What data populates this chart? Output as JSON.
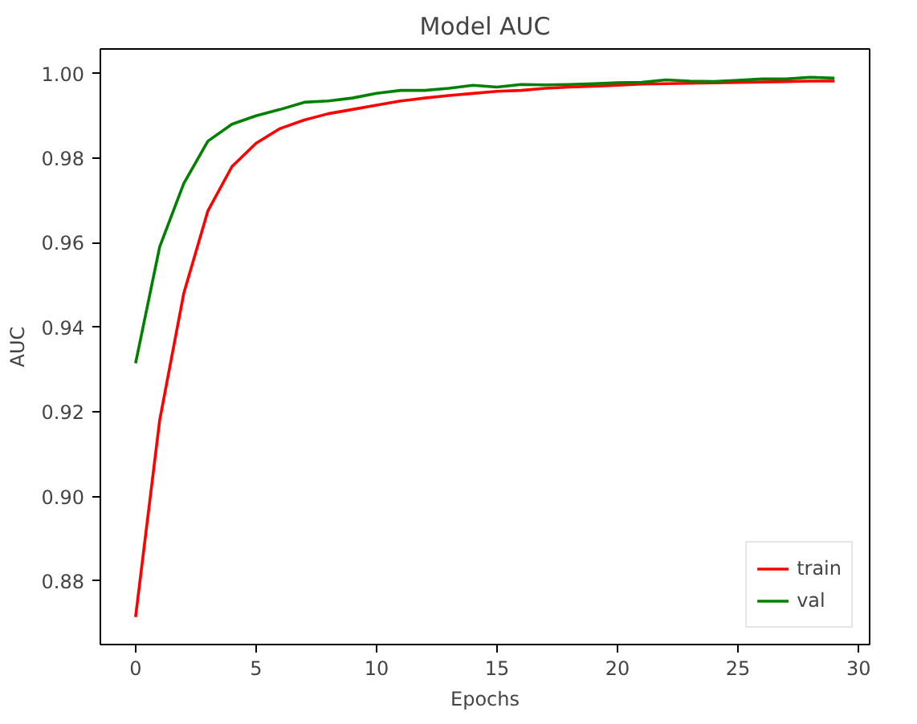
{
  "chart_data": {
    "type": "line",
    "title": "Model AUC",
    "xlabel": "Epochs",
    "ylabel": "AUC",
    "x": [
      0,
      1,
      2,
      3,
      4,
      5,
      6,
      7,
      8,
      9,
      10,
      11,
      12,
      13,
      14,
      15,
      16,
      17,
      18,
      19,
      20,
      21,
      22,
      23,
      24,
      25,
      26,
      27,
      28,
      29
    ],
    "series": [
      {
        "name": "train",
        "color": "#ff0000",
        "values": [
          0.8715,
          0.918,
          0.948,
          0.9675,
          0.978,
          0.9835,
          0.987,
          0.989,
          0.9905,
          0.9915,
          0.9925,
          0.9935,
          0.9942,
          0.9948,
          0.9953,
          0.9958,
          0.996,
          0.9965,
          0.9968,
          0.997,
          0.9972,
          0.9975,
          0.9976,
          0.9977,
          0.9978,
          0.9979,
          0.998,
          0.9981,
          0.9982,
          0.9982
        ]
      },
      {
        "name": "val",
        "color": "#008000",
        "values": [
          0.9315,
          0.959,
          0.974,
          0.984,
          0.988,
          0.99,
          0.9915,
          0.9932,
          0.9935,
          0.9942,
          0.9953,
          0.996,
          0.996,
          0.9965,
          0.9972,
          0.9968,
          0.9974,
          0.9973,
          0.9974,
          0.9976,
          0.9978,
          0.9979,
          0.9985,
          0.9982,
          0.9981,
          0.9984,
          0.9987,
          0.9987,
          0.9991,
          0.9989
        ]
      }
    ],
    "xlim": [
      -1.46,
      30.46
    ],
    "ylim": [
      0.865,
      1.0058
    ],
    "xticks": [
      0,
      5,
      10,
      15,
      20,
      25,
      30
    ],
    "yticks": [
      {
        "value": 0.88,
        "label": "0.88"
      },
      {
        "value": 0.9,
        "label": "0.90"
      },
      {
        "value": 0.92,
        "label": "0.92"
      },
      {
        "value": 0.94,
        "label": "0.94"
      },
      {
        "value": 0.96,
        "label": "0.96"
      },
      {
        "value": 0.98,
        "label": "0.98"
      },
      {
        "value": 1.0,
        "label": "1.00"
      }
    ],
    "legend": "bottom right",
    "grid": false,
    "line_style": "solid"
  }
}
